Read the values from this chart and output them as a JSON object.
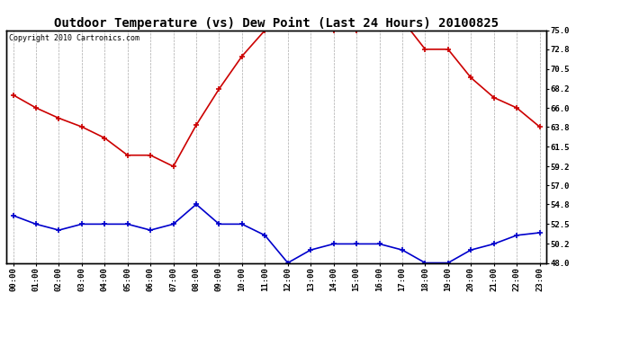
{
  "title": "Outdoor Temperature (vs) Dew Point (Last 24 Hours) 20100825",
  "copyright": "Copyright 2010 Cartronics.com",
  "hours": [
    0,
    1,
    2,
    3,
    4,
    5,
    6,
    7,
    8,
    9,
    10,
    11,
    12,
    13,
    14,
    15,
    16,
    17,
    18,
    19,
    20,
    21,
    22,
    23
  ],
  "hour_labels": [
    "00:00",
    "01:00",
    "02:00",
    "03:00",
    "04:00",
    "05:00",
    "06:00",
    "07:00",
    "08:00",
    "09:00",
    "10:00",
    "11:00",
    "12:00",
    "13:00",
    "14:00",
    "15:00",
    "16:00",
    "17:00",
    "18:00",
    "19:00",
    "20:00",
    "21:00",
    "22:00",
    "23:00"
  ],
  "temp": [
    67.5,
    66.0,
    64.8,
    63.8,
    62.5,
    60.5,
    60.5,
    59.2,
    64.0,
    68.2,
    72.0,
    75.0,
    75.5,
    76.2,
    75.0,
    75.0,
    76.0,
    76.2,
    72.8,
    72.8,
    69.5,
    67.2,
    66.0,
    63.8
  ],
  "dew": [
    53.5,
    52.5,
    51.8,
    52.5,
    52.5,
    52.5,
    51.8,
    52.5,
    54.8,
    52.5,
    52.5,
    51.2,
    48.0,
    49.5,
    50.2,
    50.2,
    50.2,
    49.5,
    48.0,
    48.0,
    49.5,
    50.2,
    51.2,
    51.5
  ],
  "temp_color": "#cc0000",
  "dew_color": "#0000cc",
  "bg_color": "#ffffff",
  "plot_bg": "#ffffff",
  "grid_color": "#aaaaaa",
  "ylim": [
    48.0,
    75.0
  ],
  "yticks": [
    48.0,
    50.2,
    52.5,
    54.8,
    57.0,
    59.2,
    61.5,
    63.8,
    66.0,
    68.2,
    70.5,
    72.8,
    75.0
  ],
  "title_fontsize": 10,
  "tick_fontsize": 6.5,
  "copyright_fontsize": 6
}
